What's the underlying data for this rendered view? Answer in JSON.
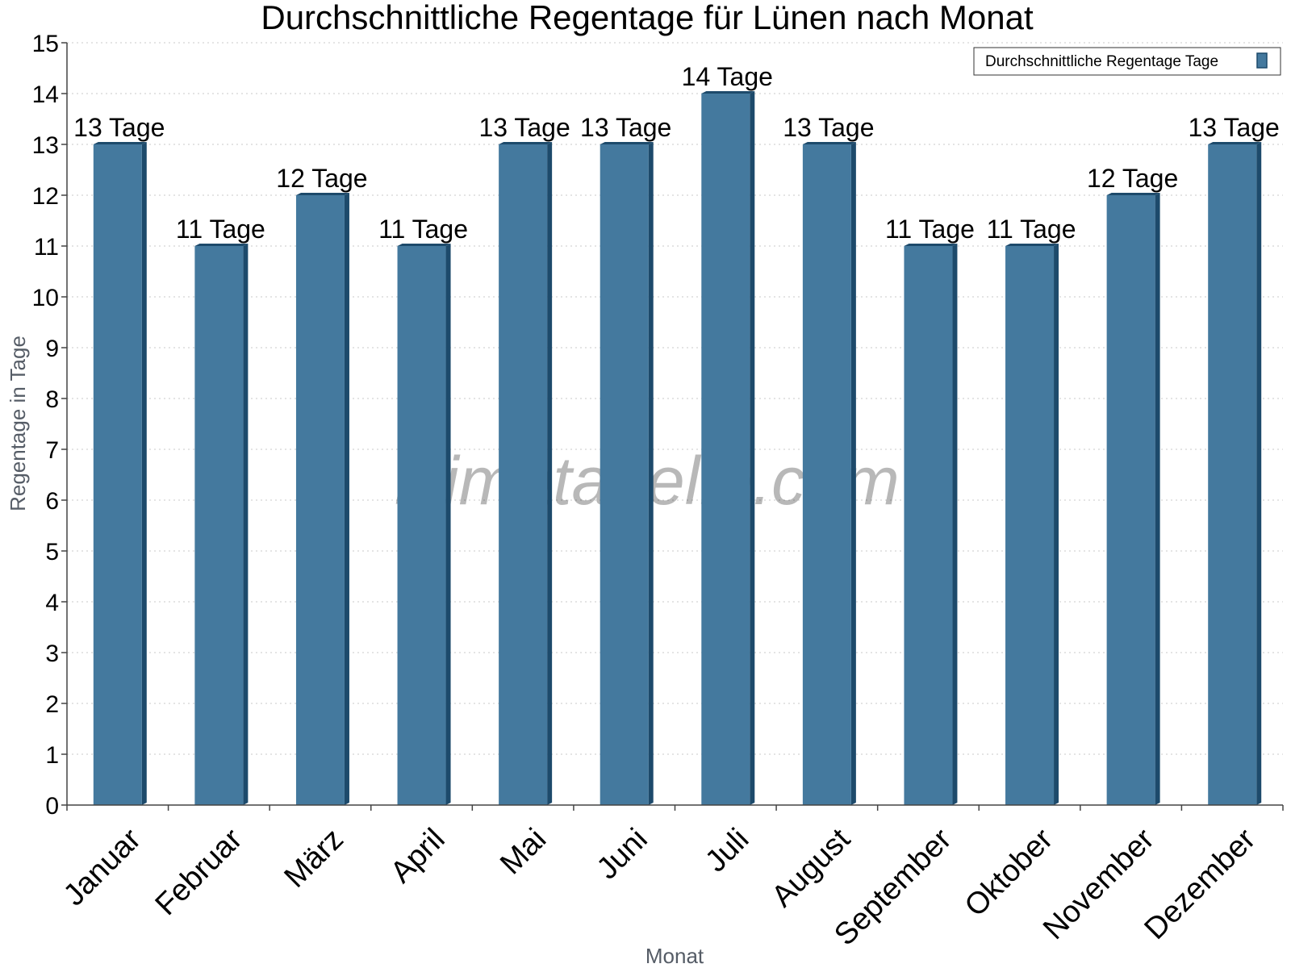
{
  "chart_data": {
    "type": "bar",
    "title": "Durchschnittliche Regentage für Lünen nach Monat",
    "xlabel": "Monat",
    "ylabel": "Regentage in Tage",
    "ylim": [
      0,
      15
    ],
    "ytick_step": 1,
    "grid": true,
    "legend_position": "top-right",
    "categories": [
      "Januar",
      "Februar",
      "März",
      "April",
      "Mai",
      "Juni",
      "Juli",
      "August",
      "September",
      "Oktober",
      "November",
      "Dezember"
    ],
    "series": [
      {
        "name": "Durchschnittliche Regentage Tage",
        "values": [
          13,
          11,
          12,
          11,
          13,
          13,
          14,
          13,
          11,
          11,
          12,
          13
        ],
        "labels": [
          "13 Tage",
          "11 Tage",
          "12 Tage",
          "11 Tage",
          "13 Tage",
          "13 Tage",
          "14 Tage",
          "13 Tage",
          "11 Tage",
          "11 Tage",
          "12 Tage",
          "13 Tage"
        ],
        "color": "#44799e",
        "side_color": "#1d4a6b"
      }
    ],
    "watermark": "klimatabelle.com"
  }
}
